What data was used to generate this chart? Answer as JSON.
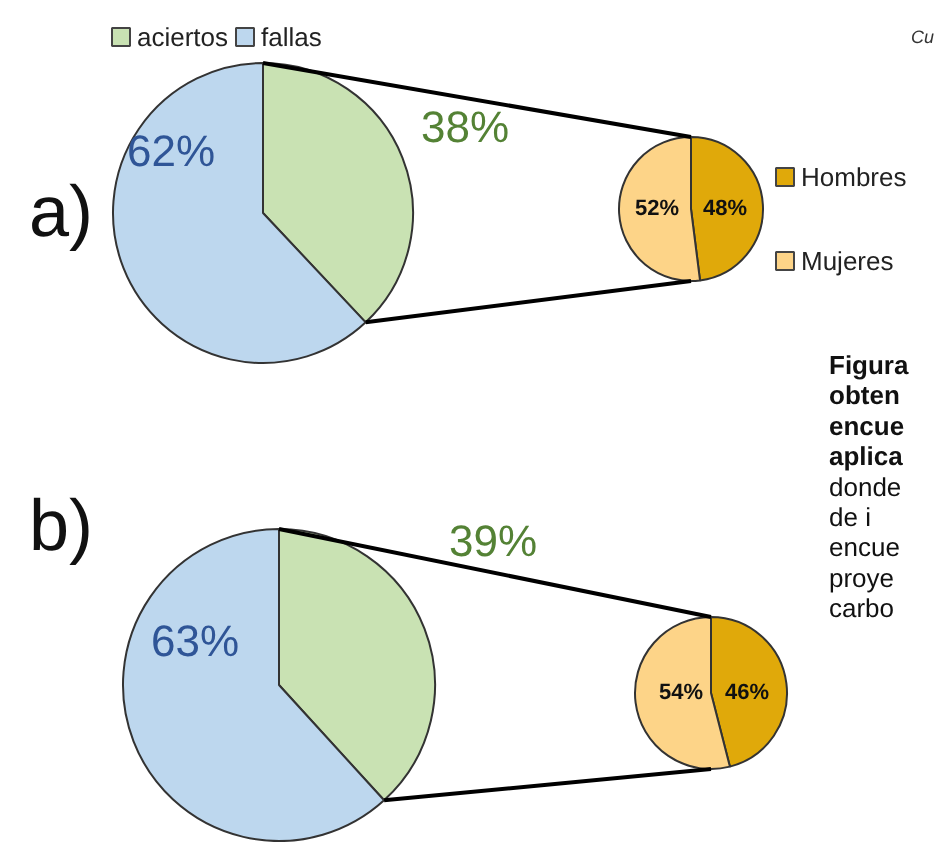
{
  "chart_data": [
    {
      "type": "pie",
      "title": "a)",
      "categories": [
        "aciertos",
        "fallas"
      ],
      "values": [
        38,
        62
      ],
      "value_labels": [
        "38%",
        "62%"
      ],
      "colors": [
        "#c9e2b3",
        "#bdd7ee"
      ],
      "legend": "top"
    },
    {
      "type": "pie",
      "categories": [
        "Hombres",
        "Mujeres"
      ],
      "values": [
        48,
        52
      ],
      "value_labels": [
        "48%",
        "52%"
      ],
      "colors": [
        "#e0a90a",
        "#fdd488"
      ],
      "legend": "right"
    },
    {
      "type": "pie",
      "title": "b)",
      "categories": [
        null,
        null
      ],
      "values": [
        39,
        63
      ],
      "value_labels": [
        "39%",
        "63%"
      ],
      "colors": [
        "#c9e2b3",
        "#bdd7ee"
      ]
    },
    {
      "type": "pie",
      "categories": [
        null,
        null
      ],
      "values": [
        46,
        54
      ],
      "value_labels": [
        "46%",
        "54%"
      ],
      "colors": [
        "#e0a90a",
        "#fdd488"
      ]
    },
    {
      "type": "other",
      "annotations": [
        "Cu",
        "Figura",
        "obten",
        "encue",
        "aplica",
        "donde",
        "de  i",
        "encue",
        "proye",
        "carbo"
      ]
    }
  ]
}
